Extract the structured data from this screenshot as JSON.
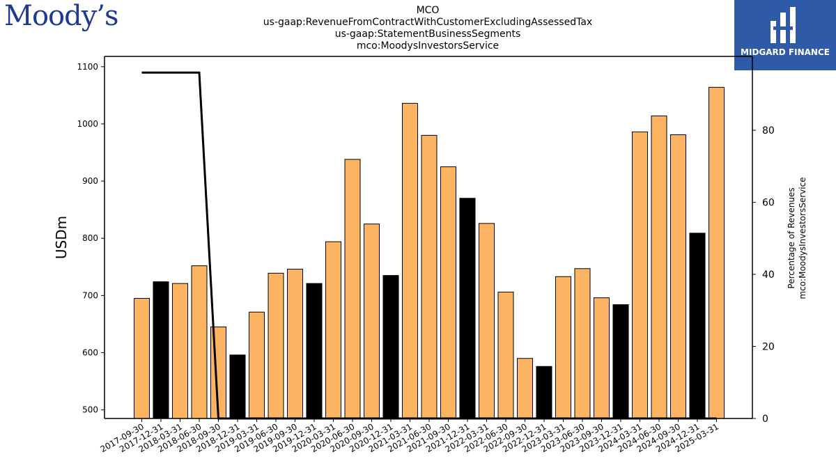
{
  "brand": {
    "left_logo": "Moody’s",
    "right_logo": "MIDGARD FINANCE",
    "logo_color": "#1f3a93",
    "logo_bg": "#2f5aa8"
  },
  "titles": {
    "line1": "MCO",
    "line2": "us-gaap:RevenueFromContractWithCustomerExcludingAssessedTax",
    "line3": "us-gaap:StatementBusinessSegments",
    "line4": "mco:MoodysInvestorsService"
  },
  "chart_data": {
    "type": "bar",
    "ylabel": "USDm",
    "y2label_line1": "Percentage of Revenues",
    "y2label_line2": "mco:MoodysInvestorsService",
    "ylim": [
      485,
      1118
    ],
    "y2lim": [
      0,
      100.5
    ],
    "yticks": [
      500,
      600,
      700,
      800,
      900,
      1000,
      1100
    ],
    "y2ticks": [
      0,
      20,
      40,
      60,
      80
    ],
    "colors": {
      "quarter": "#fdb462",
      "annual": "#000000",
      "line": "#000000"
    },
    "categories": [
      "2017-09-30",
      "2017-12-31",
      "2018-03-31",
      "2018-06-30",
      "2018-09-30",
      "2018-12-31",
      "2019-03-31",
      "2019-06-30",
      "2019-09-30",
      "2019-12-31",
      "2020-03-31",
      "2020-06-30",
      "2020-09-30",
      "2020-12-31",
      "2021-03-31",
      "2021-06-30",
      "2021-09-30",
      "2021-12-31",
      "2022-03-31",
      "2022-06-30",
      "2022-09-30",
      "2022-12-31",
      "2023-03-31",
      "2023-06-30",
      "2023-09-30",
      "2023-12-31",
      "2024-03-31",
      "2024-06-30",
      "2024-09-30",
      "2024-12-31",
      "2025-03-31"
    ],
    "values": [
      695,
      724,
      721,
      752,
      645,
      596,
      671,
      739,
      746,
      721,
      794,
      938,
      825,
      735,
      1036,
      980,
      925,
      870,
      826,
      706,
      590,
      576,
      733,
      747,
      696,
      684,
      986,
      1014,
      981,
      809,
      1064
    ],
    "annual_flags": [
      false,
      true,
      false,
      false,
      false,
      true,
      false,
      false,
      false,
      true,
      false,
      false,
      false,
      true,
      false,
      false,
      false,
      true,
      false,
      false,
      false,
      true,
      false,
      false,
      false,
      true,
      false,
      false,
      false,
      true,
      false
    ],
    "percent_series": [
      96,
      null,
      96,
      96,
      0,
      0,
      0,
      0,
      0,
      0,
      0,
      0,
      0,
      0,
      0,
      0,
      0,
      0,
      0,
      0,
      0,
      0,
      0,
      0,
      0,
      0,
      0,
      0,
      0,
      0,
      0
    ]
  }
}
